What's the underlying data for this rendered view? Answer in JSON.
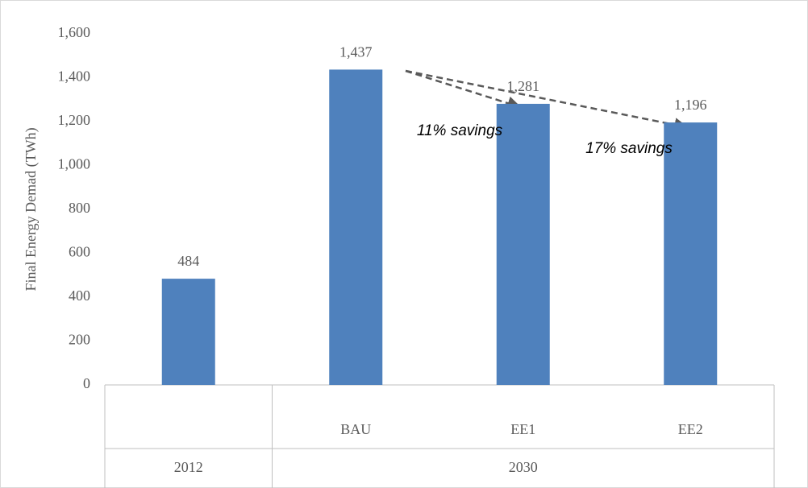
{
  "chart_data": {
    "type": "bar",
    "y_label": "Final Energy Demad (TWh)",
    "groups": [
      {
        "name": "2012",
        "categories": [
          null
        ]
      },
      {
        "name": "2030",
        "categories": [
          "BAU",
          "EE1",
          "EE2"
        ]
      }
    ],
    "values": [
      484,
      1437,
      1281,
      1196
    ],
    "value_labels": [
      "484",
      "1,437",
      "1,281",
      "1,196"
    ],
    "color": "#4f81bd",
    "ylim": [
      0,
      1600
    ],
    "yticks": [
      0,
      200,
      400,
      600,
      800,
      {
        "value": 1000,
        "label": "1,000"
      },
      {
        "value": 1200,
        "label": "1,200"
      },
      {
        "value": 1400,
        "label": "1,400"
      },
      {
        "value": 1600,
        "label": "1,600"
      }
    ],
    "grid": false,
    "annotations": [
      "11% savings",
      "17% savings"
    ]
  }
}
